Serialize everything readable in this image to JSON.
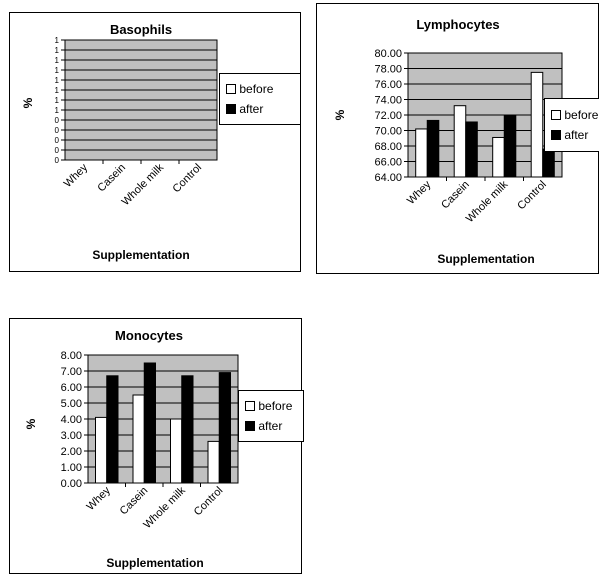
{
  "chart_data": [
    {
      "type": "bar",
      "title": "Basophils",
      "xlabel": "Supplementation",
      "ylabel": "%",
      "categories": [
        "Whey",
        "Casein",
        "Whole milk",
        "Control"
      ],
      "ytick_labels": [
        "0",
        "0",
        "0",
        "0",
        "0",
        "1",
        "1",
        "1",
        "1",
        "1",
        "1",
        "1",
        "1"
      ],
      "series": [
        {
          "name": "before",
          "values": [
            0,
            0,
            0,
            0
          ]
        },
        {
          "name": "after",
          "values": [
            0,
            0,
            0,
            0
          ]
        }
      ],
      "grid": true,
      "legend": "right"
    },
    {
      "type": "bar",
      "title": "Lymphocytes",
      "xlabel": "Supplementation",
      "ylabel": "%",
      "categories": [
        "Whey",
        "Casein",
        "Whole milk",
        "Control"
      ],
      "ylim": [
        64,
        80
      ],
      "ytick_labels": [
        "64.00",
        "66.00",
        "68.00",
        "70.00",
        "72.00",
        "74.00",
        "76.00",
        "78.00",
        "80.00"
      ],
      "series": [
        {
          "name": "before",
          "values": [
            70.2,
            73.2,
            69.1,
            77.5
          ]
        },
        {
          "name": "after",
          "values": [
            71.3,
            71.1,
            72.0,
            67.6
          ]
        }
      ],
      "grid": true,
      "legend": "right"
    },
    {
      "type": "bar",
      "title": "Monocytes",
      "xlabel": "Supplementation",
      "ylabel": "%",
      "categories": [
        "Whey",
        "Casein",
        "Whole milk",
        "Control"
      ],
      "ylim": [
        0,
        8
      ],
      "ytick_labels": [
        "0.00",
        "1.00",
        "2.00",
        "3.00",
        "4.00",
        "5.00",
        "6.00",
        "7.00",
        "8.00"
      ],
      "series": [
        {
          "name": "before",
          "values": [
            4.1,
            5.5,
            4.0,
            2.6
          ]
        },
        {
          "name": "after",
          "values": [
            6.7,
            7.5,
            6.7,
            6.9
          ]
        }
      ],
      "grid": true,
      "legend": "right"
    }
  ],
  "colors": {
    "plot_bg": "#c0c0c0",
    "before": "#ffffff",
    "after": "#000000",
    "grid": "#000000"
  }
}
